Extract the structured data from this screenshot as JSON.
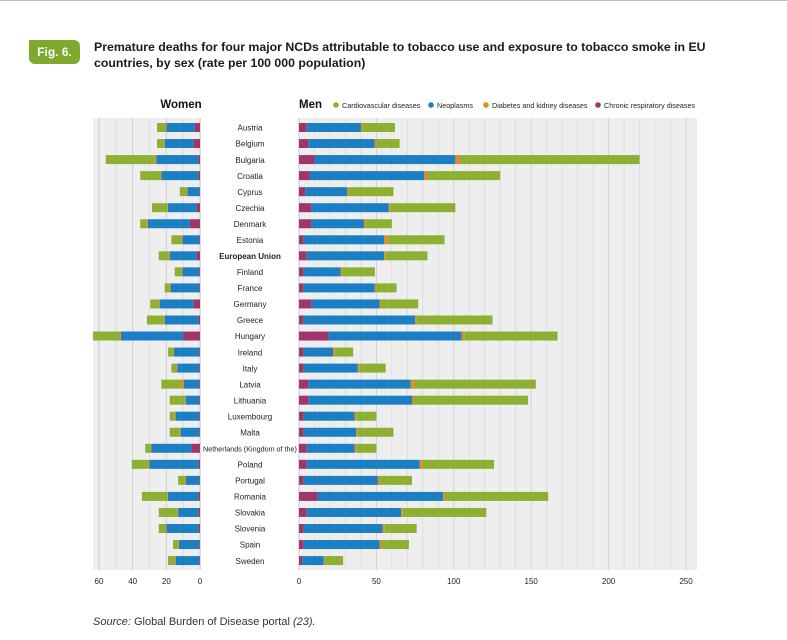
{
  "figure": {
    "label": "Fig. 6.",
    "title": "Premature deaths for four major NCDs attributable to tobacco use and exposure to tobacco smoke in EU countries, by sex (rate per 100 000 population)",
    "source_prefix": "Source:",
    "source_text": "Global Burden of Disease portal",
    "source_ref": "(23)."
  },
  "colors": {
    "Cardiovascular diseases": "#8db032",
    "Neoplasms": "#1b80c3",
    "Diabetes and kidney diseases": "#e08a2c",
    "Chronic respiratory diseases": "#a1346a"
  },
  "chart_data": {
    "type": "bar",
    "orientation": "horizontal",
    "stacked": true,
    "panels": [
      {
        "name": "Women",
        "xlim": [
          60,
          0
        ],
        "ticks": [
          60,
          40,
          20,
          0
        ]
      },
      {
        "name": "Men",
        "xlim": [
          0,
          250
        ],
        "ticks": [
          0,
          50,
          100,
          150,
          200,
          250
        ]
      }
    ],
    "legend": [
      "Cardiovascular diseases",
      "Neoplasms",
      "Diabetes and kidney diseases",
      "Chronic respiratory diseases"
    ],
    "series_order": [
      "Chronic respiratory diseases",
      "Neoplasms",
      "Diabetes and kidney diseases",
      "Cardiovascular diseases"
    ],
    "categories": [
      "Austria",
      "Belgium",
      "Bulgaria",
      "Croatia",
      "Cyprus",
      "Czechia",
      "Denmark",
      "Estonia",
      "European Union",
      "Finland",
      "France",
      "Germany",
      "Greece",
      "Hungary",
      "Ireland",
      "Italy",
      "Latvia",
      "Lithuania",
      "Luxembourg",
      "Malta",
      "Netherlands (Kingdom of the)",
      "Poland",
      "Portugal",
      "Romania",
      "Slovakia",
      "Slovenia",
      "Spain",
      "Sweden"
    ],
    "bold_category": "European Union",
    "women": {
      "Chronic respiratory diseases": [
        3,
        4,
        1,
        1,
        0.5,
        2,
        6,
        0.5,
        2,
        0.5,
        0.5,
        4,
        1,
        10,
        0.5,
        0.5,
        0.5,
        0.5,
        0.5,
        0.5,
        5,
        1,
        0.5,
        1,
        1,
        1,
        0.5,
        0.5
      ],
      "Neoplasms": [
        17,
        17,
        25,
        22,
        7,
        17,
        25,
        10,
        16,
        10,
        17,
        20,
        20,
        37,
        15,
        13,
        9,
        8,
        14,
        11,
        24,
        29,
        8,
        18,
        12,
        19,
        12,
        14
      ],
      "Diabetes and kidney diseases": [
        0.5,
        0.5,
        1,
        0.5,
        0.5,
        0.5,
        0.5,
        0.5,
        0.5,
        0.5,
        0.5,
        0.5,
        0.5,
        0.5,
        0.5,
        0.5,
        1.5,
        0.5,
        0.5,
        0.5,
        0.5,
        0.5,
        0.5,
        0.5,
        0.5,
        0.5,
        0.5,
        0.5
      ],
      "Cardiovascular diseases": [
        5,
        4,
        29,
        12,
        4,
        9,
        4,
        6,
        6,
        4,
        3,
        5,
        10,
        16,
        3,
        3,
        12,
        9,
        3,
        6,
        3,
        10,
        4,
        15,
        11,
        4,
        3,
        4
      ]
    },
    "men": {
      "Chronic respiratory diseases": [
        5,
        6,
        10,
        7,
        4,
        8,
        8,
        3,
        5,
        3,
        3,
        8,
        3,
        19,
        3,
        3,
        6,
        6,
        3,
        3,
        5,
        5,
        3,
        12,
        5,
        3,
        3,
        2
      ],
      "Neoplasms": [
        35,
        43,
        91,
        74,
        27,
        50,
        34,
        52,
        50,
        24,
        46,
        44,
        72,
        86,
        19,
        35,
        66,
        67,
        33,
        34,
        31,
        73,
        48,
        81,
        61,
        51,
        49,
        14
      ],
      "Diabetes and kidney diseases": [
        1,
        1,
        3,
        2,
        1,
        1,
        1,
        2,
        1,
        1,
        1,
        1,
        1,
        2,
        1,
        1,
        2,
        1,
        1,
        1,
        1,
        2,
        1,
        1,
        1,
        1,
        1,
        0.5
      ],
      "Cardiovascular diseases": [
        21,
        15,
        116,
        47,
        29,
        42,
        17,
        37,
        27,
        21,
        13,
        24,
        49,
        60,
        12,
        17,
        79,
        74,
        13,
        23,
        13,
        46,
        21,
        67,
        54,
        21,
        18,
        12
      ]
    }
  }
}
